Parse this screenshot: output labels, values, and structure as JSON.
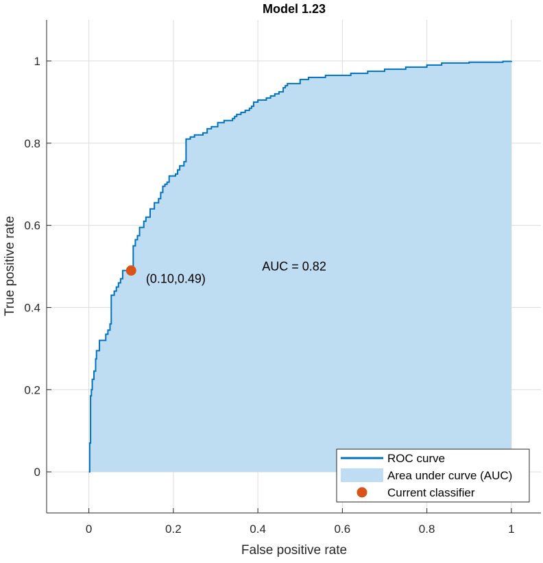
{
  "chart_data": {
    "type": "area",
    "title": "Model 1.23",
    "xlabel": "False positive rate",
    "ylabel": "True positive rate",
    "xlim": [
      -0.1,
      1.07
    ],
    "ylim": [
      -0.1,
      1.1
    ],
    "xticks": [
      0,
      0.2,
      0.4,
      0.6,
      0.8,
      1
    ],
    "yticks": [
      0,
      0.2,
      0.4,
      0.6,
      0.8,
      1
    ],
    "xtick_labels": [
      "0",
      "0.2",
      "0.4",
      "0.6",
      "0.8",
      "1"
    ],
    "ytick_labels": [
      "0",
      "0.2",
      "0.4",
      "0.6",
      "0.8",
      "1"
    ],
    "grid": true,
    "legend_position": "bottom-right",
    "colors": {
      "curve": "#0072BD",
      "area": "#BFDDF2",
      "classifier": "#D95319",
      "grid": "#DCDCDC",
      "axis": "#262626"
    },
    "series": [
      {
        "name": "ROC curve",
        "x": [
          0,
          0.002,
          0.004,
          0.006,
          0.008,
          0.012,
          0.016,
          0.018,
          0.025,
          0.03,
          0.04,
          0.045,
          0.05,
          0.053,
          0.055,
          0.06,
          0.065,
          0.07,
          0.075,
          0.08,
          0.085,
          0.09,
          0.095,
          0.1,
          0.105,
          0.11,
          0.115,
          0.12,
          0.125,
          0.13,
          0.135,
          0.145,
          0.155,
          0.165,
          0.17,
          0.175,
          0.18,
          0.185,
          0.19,
          0.2,
          0.205,
          0.21,
          0.215,
          0.225,
          0.23,
          0.24,
          0.25,
          0.255,
          0.26,
          0.27,
          0.28,
          0.29,
          0.3,
          0.305,
          0.31,
          0.32,
          0.34,
          0.345,
          0.35,
          0.36,
          0.37,
          0.38,
          0.385,
          0.39,
          0.4,
          0.41,
          0.42,
          0.43,
          0.44,
          0.45,
          0.46,
          0.465,
          0.47,
          0.48,
          0.5,
          0.51,
          0.52,
          0.54,
          0.56,
          0.58,
          0.62,
          0.64,
          0.66,
          0.7,
          0.75,
          0.8,
          0.835,
          0.855,
          0.9,
          0.98,
          1.0
        ],
        "y": [
          0,
          0.07,
          0.185,
          0.2,
          0.225,
          0.245,
          0.275,
          0.295,
          0.32,
          0.32,
          0.335,
          0.345,
          0.36,
          0.43,
          0.43,
          0.44,
          0.45,
          0.46,
          0.47,
          0.49,
          0.49,
          0.49,
          0.49,
          0.495,
          0.55,
          0.565,
          0.575,
          0.595,
          0.595,
          0.61,
          0.62,
          0.64,
          0.655,
          0.665,
          0.68,
          0.695,
          0.7,
          0.705,
          0.72,
          0.72,
          0.725,
          0.735,
          0.745,
          0.755,
          0.81,
          0.815,
          0.82,
          0.82,
          0.82,
          0.825,
          0.835,
          0.84,
          0.84,
          0.85,
          0.85,
          0.855,
          0.86,
          0.865,
          0.87,
          0.875,
          0.88,
          0.885,
          0.89,
          0.9,
          0.905,
          0.905,
          0.91,
          0.915,
          0.92,
          0.925,
          0.935,
          0.94,
          0.945,
          0.945,
          0.955,
          0.955,
          0.96,
          0.96,
          0.965,
          0.965,
          0.97,
          0.97,
          0.975,
          0.98,
          0.985,
          0.99,
          0.995,
          0.995,
          0.997,
          0.999,
          1.0
        ]
      },
      {
        "name": "Area under curve (AUC)"
      },
      {
        "name": "Current classifier",
        "x": [
          0.1
        ],
        "y": [
          0.49
        ]
      }
    ],
    "annotations": [
      {
        "text": "(0.10,0.49)",
        "x": 0.135,
        "y": 0.47
      },
      {
        "text": "AUC = 0.82",
        "x": 0.41,
        "y": 0.5
      }
    ]
  }
}
